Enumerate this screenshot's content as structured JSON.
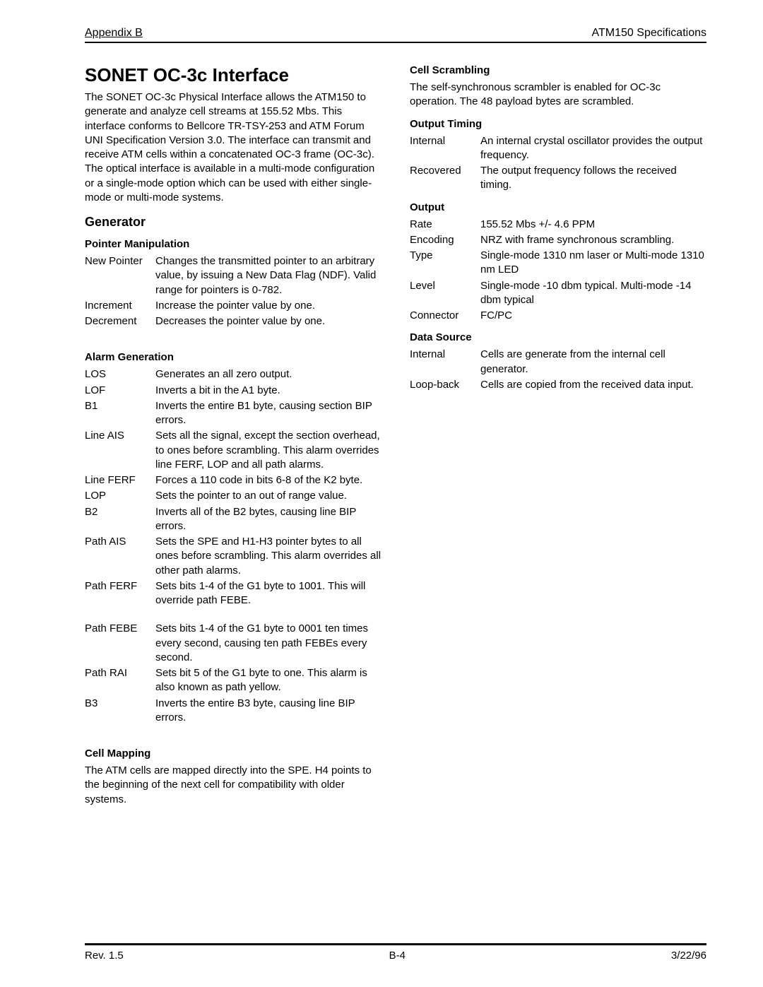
{
  "header": {
    "left": "Appendix B",
    "right": "ATM150 Specifications"
  },
  "left_col": {
    "title": "SONET OC-3c Interface",
    "intro": "The SONET OC-3c Physical Interface allows the ATM150 to generate and analyze cell streams at 155.52 Mbs. This interface conforms to Bellcore TR-TSY-253 and ATM Forum UNI Specification Version 3.0. The interface can transmit and receive ATM cells within a concatenated OC-3 frame (OC-3c). The optical interface is available in a multi-mode configuration or a single-mode option which can be used with either single-mode or multi-mode systems.",
    "generator_heading": "Generator",
    "pointer_heading": "Pointer Manipulation",
    "pointer_rows": [
      {
        "term": "New Pointer",
        "desc": "Changes the transmitted pointer to an arbitrary value, by issuing a New Data Flag (NDF). Valid range for pointers is 0-782."
      },
      {
        "term": "Increment",
        "desc": "Increase the pointer value by one."
      },
      {
        "term": "Decrement",
        "desc": "Decreases the pointer value by one."
      }
    ],
    "alarm_heading": "Alarm Generation",
    "alarm_rows": [
      {
        "term": "LOS",
        "desc": "Generates an all zero output."
      },
      {
        "term": "LOF",
        "desc": "Inverts a bit in the A1 byte."
      },
      {
        "term": "B1",
        "desc": "Inverts the entire B1 byte, causing section BIP errors."
      },
      {
        "term": "Line AIS",
        "desc": "Sets all the signal, except the section overhead, to ones before scrambling. This alarm overrides line FERF, LOP and all path alarms."
      },
      {
        "term": "Line FERF",
        "desc": "Forces a 110 code in bits 6-8 of the K2 byte."
      },
      {
        "term": "LOP",
        "desc": "Sets the pointer to an out of range value."
      },
      {
        "term": "B2",
        "desc": "Inverts all of the B2 bytes, causing line BIP errors."
      },
      {
        "term": "Path AIS",
        "desc": "Sets the SPE and H1-H3 pointer bytes to all ones before scrambling. This alarm overrides all other path alarms."
      },
      {
        "term": "Path FERF",
        "desc": "Sets bits 1-4 of the G1 byte to 1001. This will override path FEBE."
      },
      {
        "term": "Path FEBE",
        "desc": "Sets bits 1-4 of the G1 byte to 0001 ten times every second, causing ten path FEBEs every second."
      },
      {
        "term": "Path RAI",
        "desc": "Sets bit 5 of the G1 byte to one. This alarm is also known as path yellow."
      },
      {
        "term": "B3",
        "desc": "Inverts the entire B3 byte, causing line BIP errors."
      }
    ],
    "cellmap_heading": "Cell Mapping",
    "cellmap_text": "The ATM cells are mapped directly into the SPE. H4 points to the beginning of the next cell for compatibility with older systems."
  },
  "right_col": {
    "cellscr_heading": "Cell Scrambling",
    "cellscr_text": "The self-synchronous scrambler is enabled for OC-3c operation. The 48 payload bytes are scrambled.",
    "timing_heading": "Output Timing",
    "timing_rows": [
      {
        "term": "Internal",
        "desc": "An internal crystal oscillator provides the output frequency."
      },
      {
        "term": "Recovered",
        "desc": "The output frequency follows the received timing."
      }
    ],
    "output_heading": "Output",
    "output_rows": [
      {
        "term": "Rate",
        "desc": "155.52 Mbs +/- 4.6 PPM"
      },
      {
        "term": "Encoding",
        "desc": "NRZ with frame synchronous scrambling."
      },
      {
        "term": "Type",
        "desc": "Single-mode 1310 nm laser or Multi-mode 1310 nm LED"
      },
      {
        "term": "Level",
        "desc": "Single-mode -10 dbm typical. Multi-mode -14 dbm typical"
      },
      {
        "term": "Connector",
        "desc": "FC/PC"
      }
    ],
    "ds_heading": "Data Source",
    "ds_rows": [
      {
        "term": "Internal",
        "desc": "Cells are generate from the internal cell generator."
      },
      {
        "term": "Loop-back",
        "desc": "Cells are copied from the received data input."
      }
    ]
  },
  "footer": {
    "left": "Rev. 1.5",
    "center": "B-4",
    "right": "3/22/96"
  }
}
